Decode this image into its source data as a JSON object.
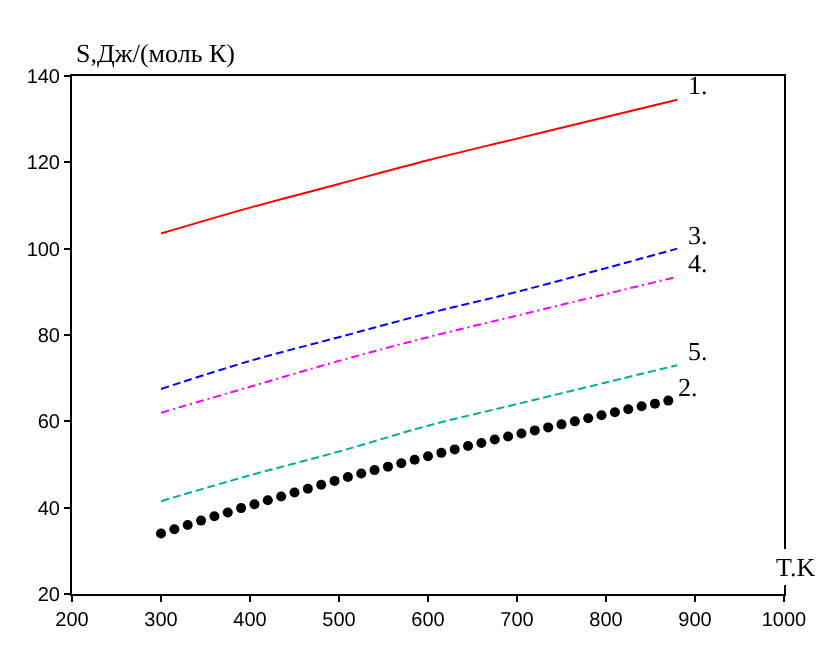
{
  "chart_data": {
    "type": "line",
    "xlabel": "T.K",
    "ylabel": "S,Дж/(моль К)",
    "xlim": [
      200,
      1000
    ],
    "xticks": [
      200,
      300,
      400,
      500,
      600,
      700,
      800,
      900,
      1000
    ],
    "ylim": [
      20,
      140
    ],
    "yticks": [
      20,
      40,
      60,
      80,
      100,
      120,
      140
    ],
    "series": [
      {
        "name": "1.",
        "color": "#ff0000",
        "line_style": "solid",
        "x": [
          300,
          400,
          500,
          600,
          700,
          800,
          880
        ],
        "values": [
          103.5,
          109.5,
          115,
          120.5,
          125.5,
          130.5,
          134.5
        ]
      },
      {
        "name": "3.",
        "color": "#0000ff",
        "line_style": "dashed",
        "x": [
          300,
          400,
          500,
          600,
          700,
          800,
          880
        ],
        "values": [
          67.5,
          74,
          79.5,
          85,
          90,
          95.5,
          100
        ]
      },
      {
        "name": "4.",
        "color": "#ff00ff",
        "line_style": "dotted",
        "x": [
          300,
          400,
          500,
          600,
          700,
          800,
          880
        ],
        "values": [
          62,
          68,
          74,
          79.5,
          84.5,
          89.5,
          93.5
        ]
      },
      {
        "name": "5.",
        "color": "#00b090",
        "line_style": "dashed",
        "x": [
          300,
          400,
          500,
          600,
          700,
          800,
          880
        ],
        "values": [
          41.5,
          47.5,
          53,
          59,
          64,
          69,
          73
        ]
      },
      {
        "name": "2.",
        "color": "#000000",
        "type": "scatter",
        "marker": "circle",
        "x": [
          300,
          315,
          330,
          345,
          360,
          375,
          390,
          405,
          420,
          435,
          450,
          465,
          480,
          495,
          510,
          525,
          540,
          555,
          570,
          585,
          600,
          615,
          630,
          645,
          660,
          675,
          690,
          705,
          720,
          735,
          750,
          765,
          780,
          795,
          810,
          825,
          840,
          855,
          870
        ],
        "values": [
          34.0,
          35.0,
          36.0,
          37.0,
          38.0,
          38.9,
          39.9,
          40.8,
          41.7,
          42.6,
          43.5,
          44.4,
          45.3,
          46.2,
          47.1,
          47.9,
          48.7,
          49.5,
          50.3,
          51.1,
          51.9,
          52.7,
          53.5,
          54.3,
          55.0,
          55.8,
          56.5,
          57.2,
          57.9,
          58.6,
          59.3,
          60.0,
          60.7,
          61.4,
          62.1,
          62.8,
          63.5,
          64.1,
          64.8
        ]
      }
    ]
  }
}
